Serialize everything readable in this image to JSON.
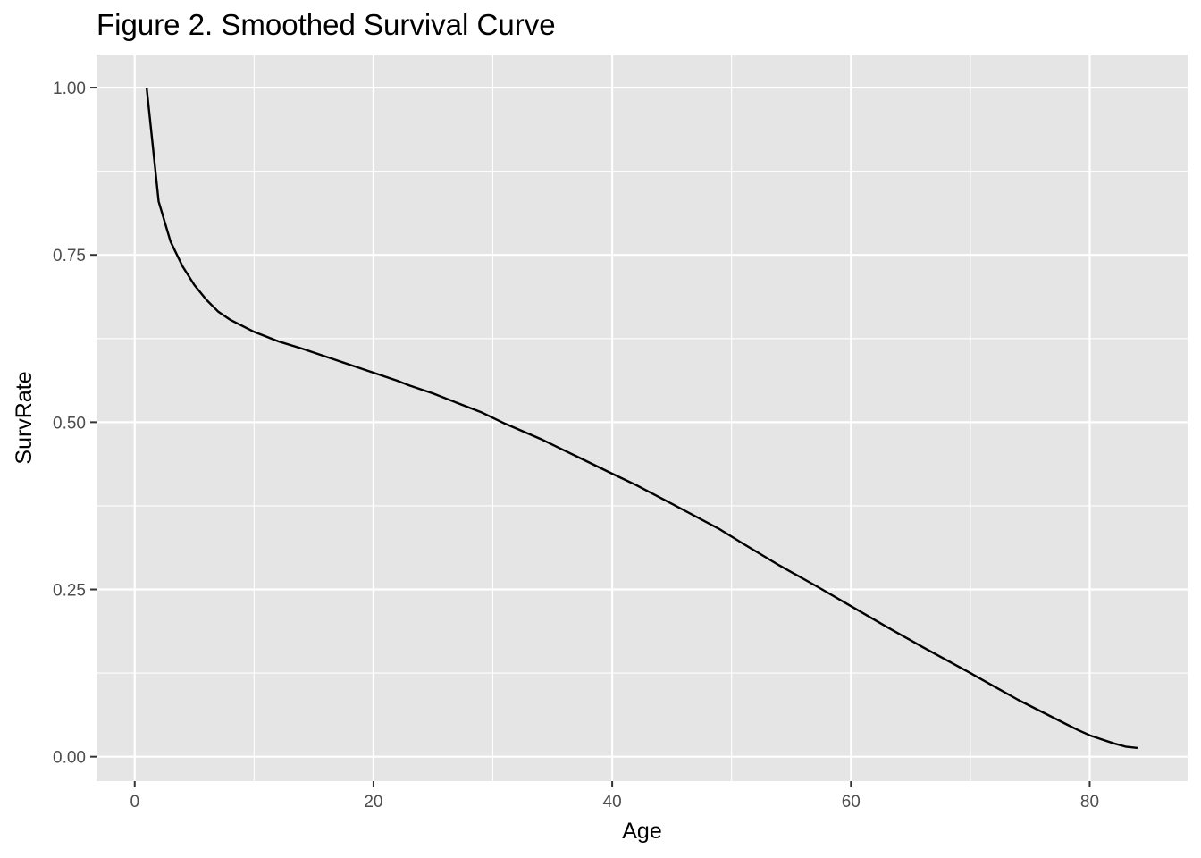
{
  "chart_data": {
    "type": "line",
    "title": "Figure 2. Smoothed Survival Curve",
    "xlabel": "Age",
    "ylabel": "SurvRate",
    "xlim": [
      -3.2,
      88.2
    ],
    "ylim": [
      -0.0365,
      1.0495
    ],
    "x_ticks": [
      0,
      20,
      40,
      60,
      80
    ],
    "x_tick_labels": [
      "0",
      "20",
      "40",
      "60",
      "80"
    ],
    "x_minor": [
      10,
      30,
      50,
      70
    ],
    "y_ticks": [
      0,
      0.25,
      0.5,
      0.75,
      1.0
    ],
    "y_tick_labels": [
      "0.00",
      "0.25",
      "0.50",
      "0.75",
      "1.00"
    ],
    "y_minor": [
      0.125,
      0.375,
      0.625,
      0.875
    ],
    "grid": true,
    "legend": "none",
    "colors": {
      "panel_background": "#e5e5e5",
      "grid_line": "#ffffff",
      "line": "#000000",
      "tick_text": "#4d4d4d",
      "tick_mark": "#333333"
    },
    "series": [
      {
        "x": [
          1,
          2,
          3,
          4,
          5,
          6,
          7,
          8,
          9,
          10,
          12,
          14,
          16,
          18,
          20,
          22,
          23,
          25,
          27,
          29,
          31,
          34,
          37,
          40,
          42,
          45,
          49,
          51,
          54,
          57,
          60,
          63,
          66,
          70,
          72,
          74,
          76,
          78,
          79,
          80,
          81,
          82,
          83,
          84
        ],
        "y": [
          1.0,
          0.83,
          0.77,
          0.733,
          0.705,
          0.683,
          0.665,
          0.653,
          0.644,
          0.635,
          0.621,
          0.61,
          0.598,
          0.586,
          0.574,
          0.562,
          0.555,
          0.543,
          0.529,
          0.515,
          0.498,
          0.475,
          0.449,
          0.423,
          0.406,
          0.378,
          0.34,
          0.318,
          0.286,
          0.256,
          0.225,
          0.194,
          0.164,
          0.125,
          0.105,
          0.085,
          0.067,
          0.049,
          0.04,
          0.032,
          0.026,
          0.02,
          0.015,
          0.013
        ]
      }
    ]
  }
}
